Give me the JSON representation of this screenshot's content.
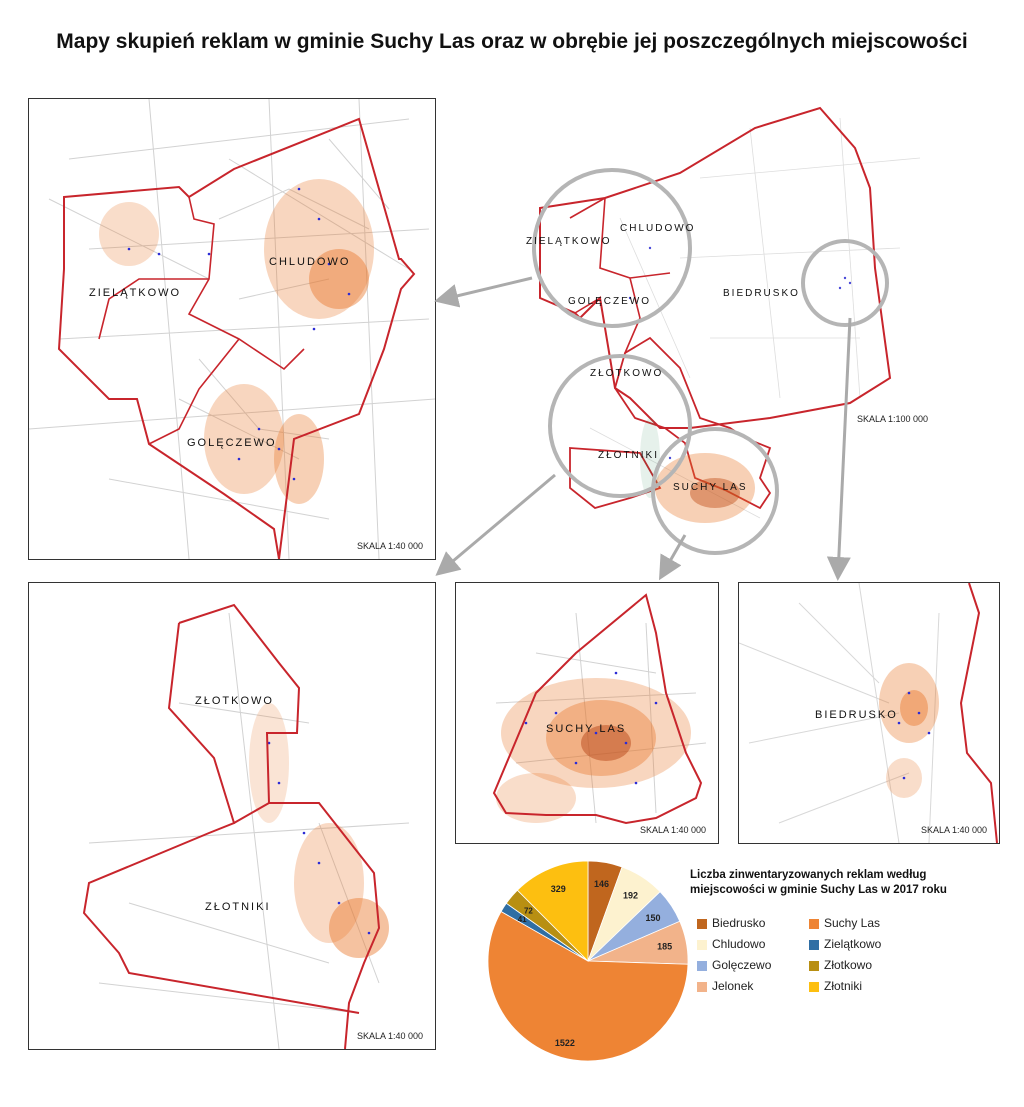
{
  "title": "Mapy skupień reklam w gminie Suchy Las oraz w obrębie jej poszczególnych miejscowości",
  "overview": {
    "labels": {
      "zielatkowo": "ZIELĄTKOWO",
      "chludowo": "CHLUDOWO",
      "goleczewo": "GOLĘCZEWO",
      "biedrusko": "BIEDRUSKO",
      "zlotkowo": "ZŁOTKOWO",
      "zlotniki": "ZŁOTNIKI",
      "suchy_las": "SUCHY LAS"
    },
    "scale": "SKALA 1:100 000"
  },
  "panel_north": {
    "labels": {
      "zielatkowo": "ZIELĄTKOWO",
      "chludowo": "CHLUDOWO",
      "goleczewo": "GOLĘCZEWO"
    },
    "scale": "SKALA 1:40 000"
  },
  "panel_south": {
    "labels": {
      "zlotkowo": "ZŁOTKOWO",
      "zlotniki": "ZŁOTNIKI"
    },
    "scale": "SKALA 1:40 000"
  },
  "panel_suchy_las": {
    "labels": {
      "suchy_las": "SUCHY LAS"
    },
    "scale": "SKALA 1:40 000"
  },
  "panel_biedrusko": {
    "labels": {
      "biedrusko": "BIEDRUSKO"
    },
    "scale": "SKALA 1:40 000"
  },
  "colors": {
    "boundary": "#c8252c",
    "heat": "#e8782c",
    "points": "#2b2bd6",
    "roads": "#cfcfcf",
    "circle": "#b5b5b5"
  },
  "chart_data": {
    "type": "pie",
    "title": "Liczba zinwentaryzowanych reklam według miejscowości w gminie Suchy Las w 2017 roku",
    "slices": [
      {
        "name": "Biedrusko",
        "value": 146,
        "color": "#c0661e"
      },
      {
        "name": "Chludowo",
        "value": 192,
        "color": "#fdf2cf"
      },
      {
        "name": "Golęczewo",
        "value": 150,
        "color": "#94afde"
      },
      {
        "name": "Jelonek",
        "value": 185,
        "color": "#f2b38a"
      },
      {
        "name": "Suchy Las",
        "value": 1522,
        "color": "#ee8434"
      },
      {
        "name": "Zielątkowo",
        "value": 41,
        "color": "#2f6ea4"
      },
      {
        "name": "Złotkowo",
        "value": 72,
        "color": "#b88f12"
      },
      {
        "name": "Złotniki",
        "value": 329,
        "color": "#fdbf10"
      }
    ],
    "legend_order": [
      "Biedrusko",
      "Suchy Las",
      "Chludowo",
      "Zielątkowo",
      "Golęczewo",
      "Złotkowo",
      "Jelonek",
      "Złotniki"
    ]
  }
}
